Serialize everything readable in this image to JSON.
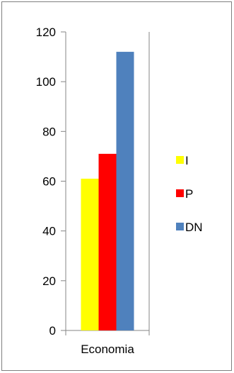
{
  "chart_data": {
    "type": "bar",
    "title": "",
    "xlabel": "",
    "ylabel": "",
    "categories": [
      "Economia"
    ],
    "series": [
      {
        "name": "I",
        "values": [
          61
        ],
        "color": "#ffff00"
      },
      {
        "name": "P",
        "values": [
          71
        ],
        "color": "#ff0000"
      },
      {
        "name": "DN",
        "values": [
          112
        ],
        "color": "#4f81bd"
      }
    ],
    "ylim": [
      0,
      120
    ],
    "yticks": [
      0,
      20,
      40,
      60,
      80,
      100,
      120
    ],
    "grid": false,
    "legend": "right"
  }
}
